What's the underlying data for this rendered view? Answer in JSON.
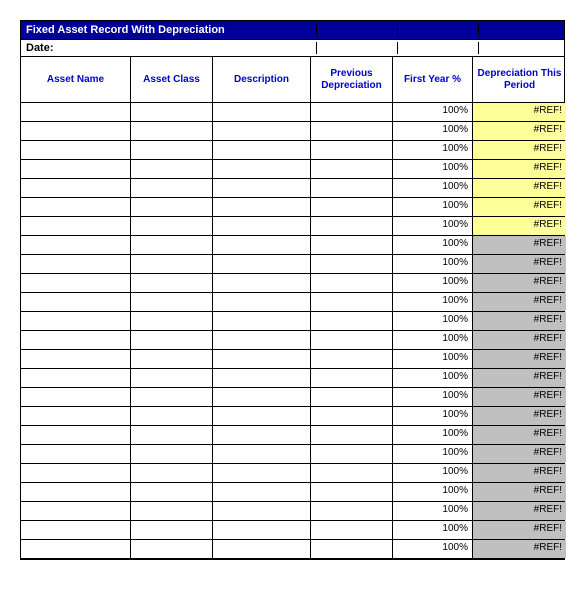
{
  "title": "Fixed Asset Record With Depreciation",
  "date_label": "Date:",
  "columns": {
    "asset_name": "Asset Name",
    "asset_class": "Asset Class",
    "description": "Description",
    "previous_dep": "Previous Depreciation",
    "first_year": "First Year %",
    "dep_period": "Depreciation This Period"
  },
  "colors": {
    "title_bg": "#000099",
    "title_fg": "#ffffff",
    "header_fg": "#0000cc",
    "yellow": "#ffff99",
    "gray": "#c0c0c0",
    "border": "#000000"
  },
  "rows": [
    {
      "asset_name": "",
      "asset_class": "",
      "description": "",
      "previous": "",
      "first_year": "100%",
      "dep": "#REF!",
      "dep_bg": "yellow"
    },
    {
      "asset_name": "",
      "asset_class": "",
      "description": "",
      "previous": "",
      "first_year": "100%",
      "dep": "#REF!",
      "dep_bg": "yellow"
    },
    {
      "asset_name": "",
      "asset_class": "",
      "description": "",
      "previous": "",
      "first_year": "100%",
      "dep": "#REF!",
      "dep_bg": "yellow"
    },
    {
      "asset_name": "",
      "asset_class": "",
      "description": "",
      "previous": "",
      "first_year": "100%",
      "dep": "#REF!",
      "dep_bg": "yellow"
    },
    {
      "asset_name": "",
      "asset_class": "",
      "description": "",
      "previous": "",
      "first_year": "100%",
      "dep": "#REF!",
      "dep_bg": "yellow"
    },
    {
      "asset_name": "",
      "asset_class": "",
      "description": "",
      "previous": "",
      "first_year": "100%",
      "dep": "#REF!",
      "dep_bg": "yellow"
    },
    {
      "asset_name": "",
      "asset_class": "",
      "description": "",
      "previous": "",
      "first_year": "100%",
      "dep": "#REF!",
      "dep_bg": "yellow"
    },
    {
      "asset_name": "",
      "asset_class": "",
      "description": "",
      "previous": "",
      "first_year": "100%",
      "dep": "#REF!",
      "dep_bg": "gray"
    },
    {
      "asset_name": "",
      "asset_class": "",
      "description": "",
      "previous": "",
      "first_year": "100%",
      "dep": "#REF!",
      "dep_bg": "gray"
    },
    {
      "asset_name": "",
      "asset_class": "",
      "description": "",
      "previous": "",
      "first_year": "100%",
      "dep": "#REF!",
      "dep_bg": "gray"
    },
    {
      "asset_name": "",
      "asset_class": "",
      "description": "",
      "previous": "",
      "first_year": "100%",
      "dep": "#REF!",
      "dep_bg": "gray"
    },
    {
      "asset_name": "",
      "asset_class": "",
      "description": "",
      "previous": "",
      "first_year": "100%",
      "dep": "#REF!",
      "dep_bg": "gray"
    },
    {
      "asset_name": "",
      "asset_class": "",
      "description": "",
      "previous": "",
      "first_year": "100%",
      "dep": "#REF!",
      "dep_bg": "gray"
    },
    {
      "asset_name": "",
      "asset_class": "",
      "description": "",
      "previous": "",
      "first_year": "100%",
      "dep": "#REF!",
      "dep_bg": "gray"
    },
    {
      "asset_name": "",
      "asset_class": "",
      "description": "",
      "previous": "",
      "first_year": "100%",
      "dep": "#REF!",
      "dep_bg": "gray"
    },
    {
      "asset_name": "",
      "asset_class": "",
      "description": "",
      "previous": "",
      "first_year": "100%",
      "dep": "#REF!",
      "dep_bg": "gray"
    },
    {
      "asset_name": "",
      "asset_class": "",
      "description": "",
      "previous": "",
      "first_year": "100%",
      "dep": "#REF!",
      "dep_bg": "gray"
    },
    {
      "asset_name": "",
      "asset_class": "",
      "description": "",
      "previous": "",
      "first_year": "100%",
      "dep": "#REF!",
      "dep_bg": "gray"
    },
    {
      "asset_name": "",
      "asset_class": "",
      "description": "",
      "previous": "",
      "first_year": "100%",
      "dep": "#REF!",
      "dep_bg": "gray"
    },
    {
      "asset_name": "",
      "asset_class": "",
      "description": "",
      "previous": "",
      "first_year": "100%",
      "dep": "#REF!",
      "dep_bg": "gray"
    },
    {
      "asset_name": "",
      "asset_class": "",
      "description": "",
      "previous": "",
      "first_year": "100%",
      "dep": "#REF!",
      "dep_bg": "gray"
    },
    {
      "asset_name": "",
      "asset_class": "",
      "description": "",
      "previous": "",
      "first_year": "100%",
      "dep": "#REF!",
      "dep_bg": "gray"
    },
    {
      "asset_name": "",
      "asset_class": "",
      "description": "",
      "previous": "",
      "first_year": "100%",
      "dep": "#REF!",
      "dep_bg": "gray"
    },
    {
      "asset_name": "",
      "asset_class": "",
      "description": "",
      "previous": "",
      "first_year": "100%",
      "dep": "#REF!",
      "dep_bg": "gray"
    }
  ]
}
